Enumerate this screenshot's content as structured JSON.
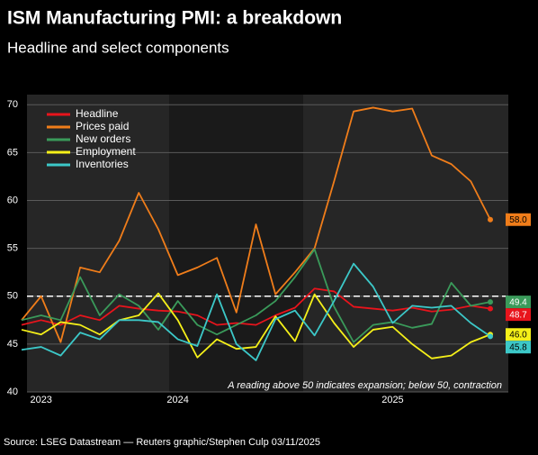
{
  "chart_data": {
    "type": "line",
    "title": "ISM Manufacturing PMI: a breakdown",
    "subtitle": "Headline and select components",
    "annotation": "A reading above 50 indicates expansion; below 50, contraction",
    "source": "Source: LSEG Datastream — Reuters graphic/Stephen Culp 03/11/2025",
    "categories": [
      null,
      "2023",
      null,
      null,
      null,
      null,
      null,
      null,
      "2024",
      null,
      null,
      null,
      null,
      null,
      null,
      null,
      null,
      null,
      null,
      "2025",
      null,
      null,
      null,
      null,
      null
    ],
    "ylim": [
      40,
      72
    ],
    "yticks": [
      40,
      45,
      50,
      55,
      60,
      65,
      70
    ],
    "grid": true,
    "threshold": 50,
    "legend": "top-left",
    "series": [
      {
        "name": "Headline",
        "color": "#e8141c",
        "values": [
          47,
          47.5,
          47,
          48,
          47.5,
          49,
          48.7,
          48.5,
          48.4,
          48,
          47,
          47.2,
          47,
          48,
          48.8,
          50.8,
          50.5,
          48.9,
          48.7,
          48.5,
          48.8,
          48.4,
          48.6,
          49,
          48.7
        ],
        "value_labels": [
          null,
          null,
          null,
          null,
          null,
          null,
          null,
          null,
          null,
          null,
          null,
          null,
          null,
          null,
          null,
          null,
          null,
          null,
          null,
          null,
          null,
          null,
          null,
          null,
          "48.7"
        ]
      },
      {
        "name": "Prices paid",
        "color": "#f07d1a",
        "values": [
          47.5,
          50,
          45.2,
          53,
          52.5,
          55.8,
          60.8,
          57,
          52.2,
          53,
          54,
          48.3,
          57.5,
          50.2,
          52.5,
          55,
          62,
          69.3,
          69.7,
          69.3,
          69.6,
          64.7,
          63.8,
          62,
          58
        ],
        "value_labels": [
          null,
          null,
          null,
          null,
          null,
          null,
          null,
          null,
          null,
          null,
          null,
          null,
          null,
          null,
          null,
          null,
          null,
          null,
          null,
          null,
          null,
          null,
          null,
          null,
          "58.0"
        ]
      },
      {
        "name": "New orders",
        "color": "#3a9a5a",
        "values": [
          47.5,
          48,
          47.5,
          52,
          48,
          50.2,
          49,
          46.5,
          49.5,
          47,
          46,
          47,
          48,
          49.5,
          52,
          54.9,
          48.9,
          45.2,
          47,
          47.3,
          46.7,
          47.1,
          51.4,
          49,
          49.4
        ],
        "value_labels": [
          null,
          null,
          null,
          null,
          null,
          null,
          null,
          null,
          null,
          null,
          null,
          null,
          null,
          null,
          null,
          null,
          null,
          null,
          null,
          null,
          null,
          null,
          null,
          null,
          "49.4"
        ]
      },
      {
        "name": "Employment",
        "color": "#f5f019",
        "values": [
          46.5,
          46,
          47.3,
          47,
          46,
          47.5,
          48,
          50.3,
          47.5,
          43.6,
          45.5,
          44.5,
          44.7,
          47.9,
          45.3,
          50.2,
          47.2,
          44.7,
          46.5,
          46.8,
          45,
          43.5,
          43.8,
          45.2,
          46
        ],
        "value_labels": [
          null,
          null,
          null,
          null,
          null,
          null,
          null,
          null,
          null,
          null,
          null,
          null,
          null,
          null,
          null,
          null,
          null,
          null,
          null,
          null,
          null,
          null,
          null,
          null,
          "46.0"
        ]
      },
      {
        "name": "Inventories",
        "color": "#3cc8c8",
        "values": [
          44.4,
          44.7,
          43.8,
          46.2,
          45.5,
          47.5,
          47.5,
          47.3,
          45.5,
          44.8,
          50.2,
          45,
          43.3,
          47.6,
          48.5,
          45.9,
          49.5,
          53.4,
          51,
          47.2,
          49,
          48.8,
          49,
          47.2,
          45.8
        ],
        "value_labels": [
          null,
          null,
          null,
          null,
          null,
          null,
          null,
          null,
          null,
          null,
          null,
          null,
          null,
          null,
          null,
          null,
          null,
          null,
          null,
          null,
          null,
          null,
          null,
          null,
          "45.8"
        ]
      }
    ]
  }
}
